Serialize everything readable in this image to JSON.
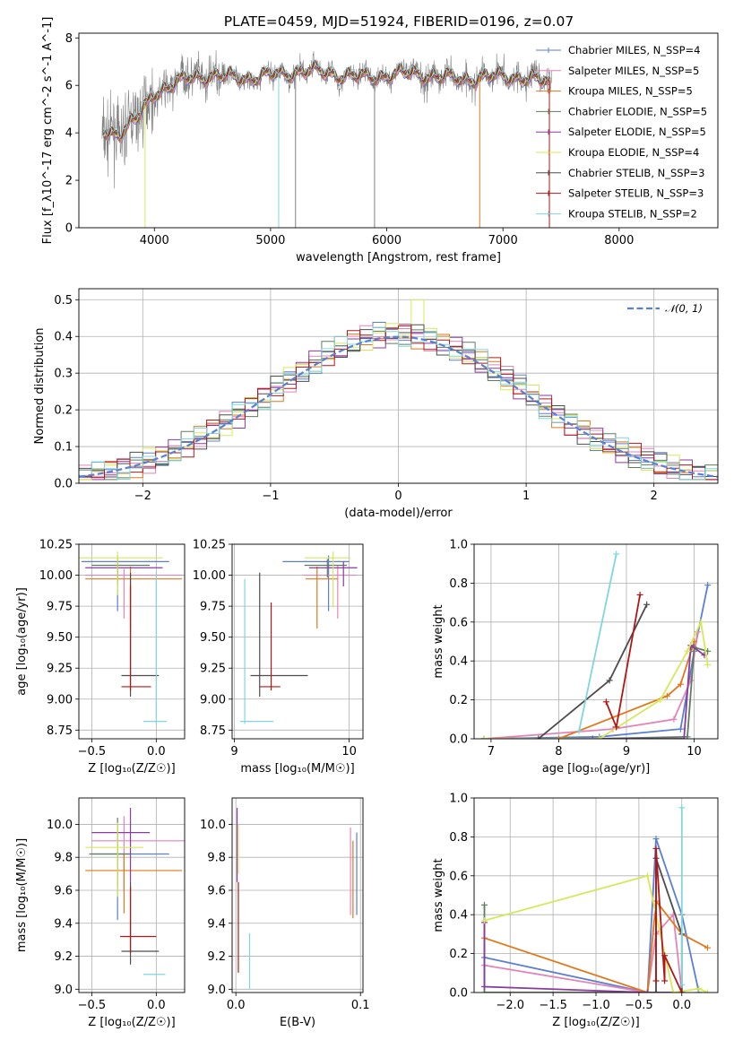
{
  "chart_data": [
    {
      "type": "line",
      "title": "PLATE=0459, MJD=51924, FIBERID=0196, z=0.07",
      "xlabel": "wavelength [Angstrom, rest frame]",
      "ylabel": "Flux [f_λ10^-17 erg cm^-2 s^-1 A^-1]",
      "xlim": [
        3350,
        8850
      ],
      "ylim": [
        0,
        8.2
      ],
      "xticks": [
        "4000",
        "5000",
        "6000",
        "7000",
        "8000"
      ],
      "yticks": [
        "0",
        "2",
        "4",
        "6",
        "8"
      ],
      "grid": false,
      "legend_position": "top-right",
      "series": [
        {
          "name": "Chabrier MILES, N_SSP=4",
          "color": "#5b7fd4"
        },
        {
          "name": "Salpeter MILES, N_SSP=5",
          "color": "#e384b9"
        },
        {
          "name": "Kroupa MILES, N_SSP=5",
          "color": "#e0781b"
        },
        {
          "name": "Chabrier ELODIE, N_SSP=5",
          "color": "#5e7e5e"
        },
        {
          "name": "Salpeter ELODIE, N_SSP=5",
          "color": "#8a3b9e"
        },
        {
          "name": "Kroupa ELODIE, N_SSP=4",
          "color": "#d6e85a"
        },
        {
          "name": "Chabrier STELIB, N_SSP=3",
          "color": "#4d4d4d"
        },
        {
          "name": "Salpeter STELIB, N_SSP=3",
          "color": "#b01818"
        },
        {
          "name": "Kroupa STELIB, N_SSP=2",
          "color": "#7fd6dc"
        }
      ],
      "observed_color": "#808080",
      "continuum": {
        "x": [
          3550,
          3700,
          3850,
          4000,
          4300,
          4600,
          5000,
          5500,
          6000,
          6500,
          7000,
          7400
        ],
        "y": [
          4.0,
          3.9,
          4.6,
          5.8,
          6.3,
          6.3,
          6.5,
          6.5,
          6.4,
          6.4,
          6.3,
          6.2
        ]
      }
    },
    {
      "type": "line",
      "xlabel": "(data-model)/error",
      "ylabel": "Normed distribution",
      "xlim": [
        -2.5,
        2.5
      ],
      "ylim": [
        0,
        0.53
      ],
      "xticks": [
        "−2",
        "−1",
        "0",
        "1",
        "2"
      ],
      "yticks": [
        "0.0",
        "0.1",
        "0.2",
        "0.3",
        "0.4",
        "0.5"
      ],
      "grid": true,
      "legend_position": "top-right",
      "reference_curve": {
        "name": "𝒩(0, 1)",
        "color": "#5b7fd4",
        "mu": 0,
        "sigma": 1
      },
      "bins": {
        "start": -2.5,
        "width": 0.1,
        "count": 50
      }
    },
    {
      "type": "scatter",
      "xlabel": "Z [log₁₀(Z/Z☉)]",
      "ylabel": "age  [log₁₀(age/yr)]",
      "xlim": [
        -0.6,
        0.22
      ],
      "ylim": [
        8.68,
        10.25
      ],
      "xticks": [
        "−0.5",
        "0.0"
      ],
      "yticks": [
        "8.75",
        "9.00",
        "9.25",
        "9.50",
        "9.75",
        "10.00",
        "10.25"
      ],
      "grid": true,
      "points": [
        {
          "x": -0.3,
          "y": 10.11,
          "xerr": [
            0.28,
            0.4
          ],
          "yerr": [
            0.4,
            0.05
          ],
          "color": "#5b7fd4"
        },
        {
          "x": -0.25,
          "y": 10.0,
          "xerr": [
            0.3,
            0.45
          ],
          "yerr": [
            0.35,
            0.05
          ],
          "color": "#e384b9"
        },
        {
          "x": -0.2,
          "y": 9.97,
          "xerr": [
            0.35,
            0.4
          ],
          "yerr": [
            0.4,
            0.1
          ],
          "color": "#e0781b"
        },
        {
          "x": -0.3,
          "y": 10.08,
          "xerr": [
            0.2,
            0.25
          ],
          "yerr": [
            0.15,
            0.05
          ],
          "color": "#5e7e5e"
        },
        {
          "x": -0.3,
          "y": 10.06,
          "xerr": [
            0.25,
            0.35
          ],
          "yerr": [
            0.08,
            0.05
          ],
          "color": "#8a3b9e"
        },
        {
          "x": -0.3,
          "y": 10.14,
          "xerr": [
            0.3,
            0.35
          ],
          "yerr": [
            0.3,
            0.05
          ],
          "color": "#d6e85a"
        },
        {
          "x": -0.2,
          "y": 9.19,
          "xerr": [
            0.07,
            0.22
          ],
          "yerr": [
            0.17,
            0.83
          ],
          "color": "#4d4d4d"
        },
        {
          "x": -0.2,
          "y": 9.1,
          "xerr": [
            0.07,
            0.16
          ],
          "yerr": [
            0.03,
            0.82
          ],
          "color": "#b01818"
        },
        {
          "x": 0.0,
          "y": 8.82,
          "xerr": [
            0.1,
            0.08
          ],
          "yerr": [
            0.02,
            1.2
          ],
          "color": "#7fd6dc"
        }
      ]
    },
    {
      "type": "scatter",
      "xlabel": "mass [log₁₀(M/M☉)]",
      "ylabel": "",
      "xlim": [
        8.98,
        10.12
      ],
      "ylim": [
        8.68,
        10.25
      ],
      "xticks": [
        "9",
        "10"
      ],
      "yticks": [
        "8.75",
        "9.00",
        "9.25",
        "9.50",
        "9.75",
        "10.00",
        "10.25"
      ],
      "grid": true,
      "points": [
        {
          "x": 9.82,
          "y": 10.11,
          "xerr": [
            0.4,
            0.18
          ],
          "yerr": [
            0.4,
            0.05
          ],
          "color": "#5b7fd4"
        },
        {
          "x": 9.9,
          "y": 10.0,
          "xerr": [
            0.3,
            0.17
          ],
          "yerr": [
            0.35,
            0.08
          ],
          "color": "#e384b9"
        },
        {
          "x": 9.72,
          "y": 9.97,
          "xerr": [
            0.1,
            0.18
          ],
          "yerr": [
            0.4,
            0.1
          ],
          "color": "#e0781b"
        },
        {
          "x": 9.81,
          "y": 10.08,
          "xerr": [
            0.2,
            0.17
          ],
          "yerr": [
            0.1,
            0.05
          ],
          "color": "#5e7e5e"
        },
        {
          "x": 9.95,
          "y": 10.06,
          "xerr": [
            0.3,
            0.12
          ],
          "yerr": [
            0.15,
            0.05
          ],
          "color": "#8a3b9e"
        },
        {
          "x": 9.86,
          "y": 10.14,
          "xerr": [
            0.25,
            0.15
          ],
          "yerr": [
            0.4,
            0.05
          ],
          "color": "#d6e85a"
        },
        {
          "x": 9.22,
          "y": 9.19,
          "xerr": [
            0.08,
            0.42
          ],
          "yerr": [
            0.17,
            0.83
          ],
          "color": "#4d4d4d"
        },
        {
          "x": 9.32,
          "y": 9.1,
          "xerr": [
            0.1,
            0.08
          ],
          "yerr": [
            0.03,
            0.68
          ],
          "color": "#b01818"
        },
        {
          "x": 9.09,
          "y": 8.82,
          "xerr": [
            0.04,
            0.25
          ],
          "yerr": [
            0.02,
            1.15
          ],
          "color": "#7fd6dc"
        }
      ]
    },
    {
      "type": "line",
      "xlabel": "age  [log₁₀(age/yr)]",
      "ylabel": "mass weight",
      "xlim": [
        6.75,
        10.35
      ],
      "ylim": [
        0,
        1.0
      ],
      "xticks": [
        "7",
        "8",
        "9",
        "10"
      ],
      "yticks": [
        "0.0",
        "0.2",
        "0.4",
        "0.6",
        "0.8",
        "1.0"
      ],
      "grid": true,
      "series": [
        {
          "color": "#5b7fd4",
          "x": [
            6.9,
            8.6,
            9.8,
            10.0,
            10.2
          ],
          "y": [
            0.0,
            0.01,
            0.05,
            0.45,
            0.79
          ]
        },
        {
          "color": "#e384b9",
          "x": [
            6.9,
            8.8,
            9.7,
            9.95,
            10.05
          ],
          "y": [
            0.0,
            0.05,
            0.1,
            0.3,
            0.55
          ]
        },
        {
          "color": "#e0781b",
          "x": [
            6.9,
            8.0,
            9.6,
            9.8,
            10.0
          ],
          "y": [
            0.0,
            0.0,
            0.22,
            0.28,
            0.5
          ]
        },
        {
          "color": "#5e7e5e",
          "x": [
            6.9,
            8.5,
            9.9,
            10.0,
            10.2
          ],
          "y": [
            0.0,
            0.0,
            0.01,
            0.47,
            0.45
          ]
        },
        {
          "color": "#8a3b9e",
          "x": [
            6.9,
            8.5,
            9.85,
            9.95,
            10.15
          ],
          "y": [
            0.0,
            0.0,
            0.0,
            0.48,
            0.43
          ]
        },
        {
          "color": "#d6e85a",
          "x": [
            6.9,
            8.6,
            9.5,
            9.9,
            10.1,
            10.2
          ],
          "y": [
            0.0,
            0.0,
            0.2,
            0.45,
            0.6,
            0.38
          ]
        },
        {
          "color": "#4d4d4d",
          "x": [
            7.7,
            8.75,
            9.3
          ],
          "y": [
            0.0,
            0.3,
            0.69
          ]
        },
        {
          "color": "#b01818",
          "x": [
            8.7,
            8.85,
            9.2
          ],
          "y": [
            0.19,
            0.06,
            0.74
          ]
        },
        {
          "color": "#7fd6dc",
          "x": [
            8.3,
            8.85
          ],
          "y": [
            0.04,
            0.95
          ]
        }
      ]
    },
    {
      "type": "scatter",
      "xlabel": "Z [log₁₀(Z/Z☉)]",
      "ylabel": "mass [log₁₀(M/M☉)]",
      "xlim": [
        -0.6,
        0.22
      ],
      "ylim": [
        8.98,
        10.16
      ],
      "xticks": [
        "−0.5",
        "0.0"
      ],
      "yticks": [
        "9.0",
        "9.2",
        "9.4",
        "9.6",
        "9.8",
        "10.0"
      ],
      "grid": true,
      "points": [
        {
          "x": -0.3,
          "y": 9.82,
          "xerr": [
            0.2,
            0.4
          ],
          "yerr": [
            0.4,
            0.15
          ],
          "color": "#5b7fd4"
        },
        {
          "x": -0.25,
          "y": 9.9,
          "xerr": [
            0.25,
            0.5
          ],
          "yerr": [
            0.3,
            0.15
          ],
          "color": "#e384b9"
        },
        {
          "x": -0.25,
          "y": 9.72,
          "xerr": [
            0.3,
            0.45
          ],
          "yerr": [
            0.26,
            0.1
          ],
          "color": "#e0781b"
        },
        {
          "x": -0.3,
          "y": 9.82,
          "xerr": [
            0.22,
            0.1
          ],
          "yerr": [
            0.2,
            0.22
          ],
          "color": "#5e7e5e"
        },
        {
          "x": -0.2,
          "y": 9.95,
          "xerr": [
            0.3,
            0.15
          ],
          "yerr": [
            0.3,
            0.15
          ],
          "color": "#8a3b9e"
        },
        {
          "x": -0.3,
          "y": 9.86,
          "xerr": [
            0.25,
            0.2
          ],
          "yerr": [
            0.3,
            0.15
          ],
          "color": "#d6e85a"
        },
        {
          "x": -0.2,
          "y": 9.23,
          "xerr": [
            0.07,
            0.22
          ],
          "yerr": [
            0.08,
            0.42
          ],
          "color": "#4d4d4d"
        },
        {
          "x": -0.2,
          "y": 9.32,
          "xerr": [
            0.08,
            0.2
          ],
          "yerr": [
            0.1,
            0.3
          ],
          "color": "#b01818"
        },
        {
          "x": -0.05,
          "y": 9.09,
          "xerr": [
            0.05,
            0.12
          ],
          "yerr": [
            0.0,
            0.0
          ],
          "color": "#7fd6dc"
        }
      ]
    },
    {
      "type": "scatter",
      "xlabel": "E(B-V)",
      "ylabel": "",
      "xlim": [
        -0.003,
        0.102
      ],
      "ylim": [
        8.98,
        10.16
      ],
      "xticks": [
        "0.0",
        "0.1"
      ],
      "yticks": [
        "9.0",
        "9.2",
        "9.4",
        "9.6",
        "9.8",
        "10.0"
      ],
      "grid": true,
      "points": [
        {
          "x": 0.001,
          "y": 9.95,
          "yerr": [
            0.3,
            0.15
          ],
          "color": "#8a3b9e"
        },
        {
          "x": 0.002,
          "y": 9.85,
          "yerr": [
            0.15,
            0.15
          ],
          "color": "#d6e85a"
        },
        {
          "x": 0.002,
          "y": 9.45,
          "yerr": [
            0.35,
            0.2
          ],
          "color": "#b01818"
        },
        {
          "x": 0.011,
          "y": 9.2,
          "yerr": [
            0.2,
            0.14
          ],
          "color": "#7fd6dc"
        },
        {
          "x": 0.092,
          "y": 9.7,
          "yerr": [
            0.25,
            0.28
          ],
          "color": "#e384b9"
        },
        {
          "x": 0.094,
          "y": 9.68,
          "yerr": [
            0.25,
            0.22
          ],
          "color": "#e0781b"
        },
        {
          "x": 0.097,
          "y": 9.7,
          "yerr": [
            0.25,
            0.25
          ],
          "color": "#5b7fd4"
        }
      ]
    },
    {
      "type": "line",
      "xlabel": "Z [log₁₀(Z/Z☉)]",
      "ylabel": "mass weight",
      "xlim": [
        -2.42,
        0.42
      ],
      "ylim": [
        0,
        1.0
      ],
      "xticks": [
        "−2.0",
        "−1.5",
        "−1.0",
        "−0.5",
        "0.0"
      ],
      "yticks": [
        "0.0",
        "0.2",
        "0.4",
        "0.6",
        "0.8",
        "1.0"
      ],
      "grid": true,
      "series": [
        {
          "color": "#5b7fd4",
          "x": [
            -2.3,
            -0.4,
            -0.3,
            0.0,
            0.2
          ],
          "y": [
            0.18,
            0.0,
            0.79,
            0.4,
            0.0
          ]
        },
        {
          "color": "#e384b9",
          "x": [
            -2.3,
            -0.4,
            -0.3,
            -0.1,
            0.0
          ],
          "y": [
            0.14,
            0.0,
            0.3,
            0.4,
            0.0
          ]
        },
        {
          "color": "#e0781b",
          "x": [
            -2.3,
            -0.4,
            -0.3,
            0.0,
            0.3
          ],
          "y": [
            0.28,
            0.0,
            0.47,
            0.3,
            0.23
          ]
        },
        {
          "color": "#5e7e5e",
          "x": [
            -2.3,
            -2.3,
            -0.4,
            -0.3,
            0.0
          ],
          "y": [
            0.45,
            0.0,
            0.0,
            0.0,
            0.0
          ]
        },
        {
          "color": "#8a3b9e",
          "x": [
            -2.3,
            -2.3,
            -0.4,
            0.0
          ],
          "y": [
            0.36,
            0.03,
            0.0,
            0.0
          ]
        },
        {
          "color": "#d6e85a",
          "x": [
            -2.3,
            -0.4,
            -0.1,
            0.2,
            0.3
          ],
          "y": [
            0.37,
            0.6,
            0.0,
            0.02,
            0.0
          ]
        },
        {
          "color": "#4d4d4d",
          "x": [
            -0.3,
            -0.3,
            0.0,
            0.0
          ],
          "y": [
            0.0,
            0.69,
            0.3,
            0.0
          ]
        },
        {
          "color": "#b01818",
          "x": [
            -0.3,
            -0.3,
            -0.2,
            -0.2,
            0.0
          ],
          "y": [
            0.06,
            0.74,
            0.06,
            0.19,
            0.0
          ]
        },
        {
          "color": "#7fd6dc",
          "x": [
            0.0,
            0.0
          ],
          "y": [
            0.04,
            0.95
          ]
        }
      ]
    }
  ]
}
